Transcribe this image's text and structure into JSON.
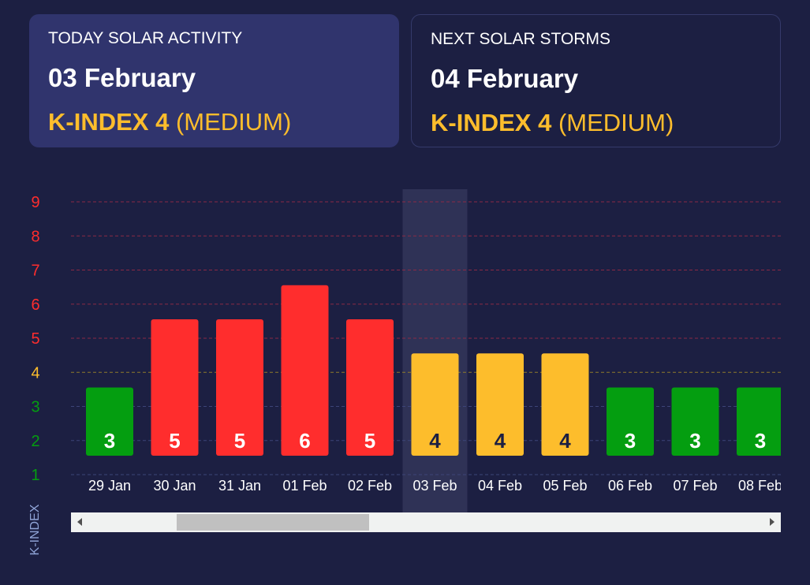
{
  "today": {
    "title": "TODAY SOLAR ACTIVITY",
    "date": "03 February",
    "kindex": "K-INDEX 4",
    "level": "(MEDIUM)"
  },
  "next": {
    "title": "NEXT SOLAR STORMS",
    "date": "04 February",
    "kindex": "K-INDEX 4",
    "level": "(MEDIUM)"
  },
  "colors": {
    "background": "#1c1f42",
    "low": "#049e10",
    "medium": "#fdbd2c",
    "high": "#ff2d2d",
    "highlight": "#2f3256"
  },
  "chart_data": {
    "type": "bar",
    "ylabel": "K-INDEX",
    "ylim": [
      1,
      9
    ],
    "yticks": [
      1,
      2,
      3,
      4,
      5,
      6,
      7,
      8,
      9
    ],
    "grid": true,
    "categories": [
      "29 Jan",
      "30 Jan",
      "31 Jan",
      "01 Feb",
      "02 Feb",
      "03 Feb",
      "04 Feb",
      "05 Feb",
      "06 Feb",
      "07 Feb",
      "08 Feb"
    ],
    "values": [
      3,
      5,
      5,
      6,
      5,
      4,
      4,
      4,
      3,
      3,
      3
    ],
    "highlighted": "03 Feb",
    "horizontal_scrollbar": true
  }
}
